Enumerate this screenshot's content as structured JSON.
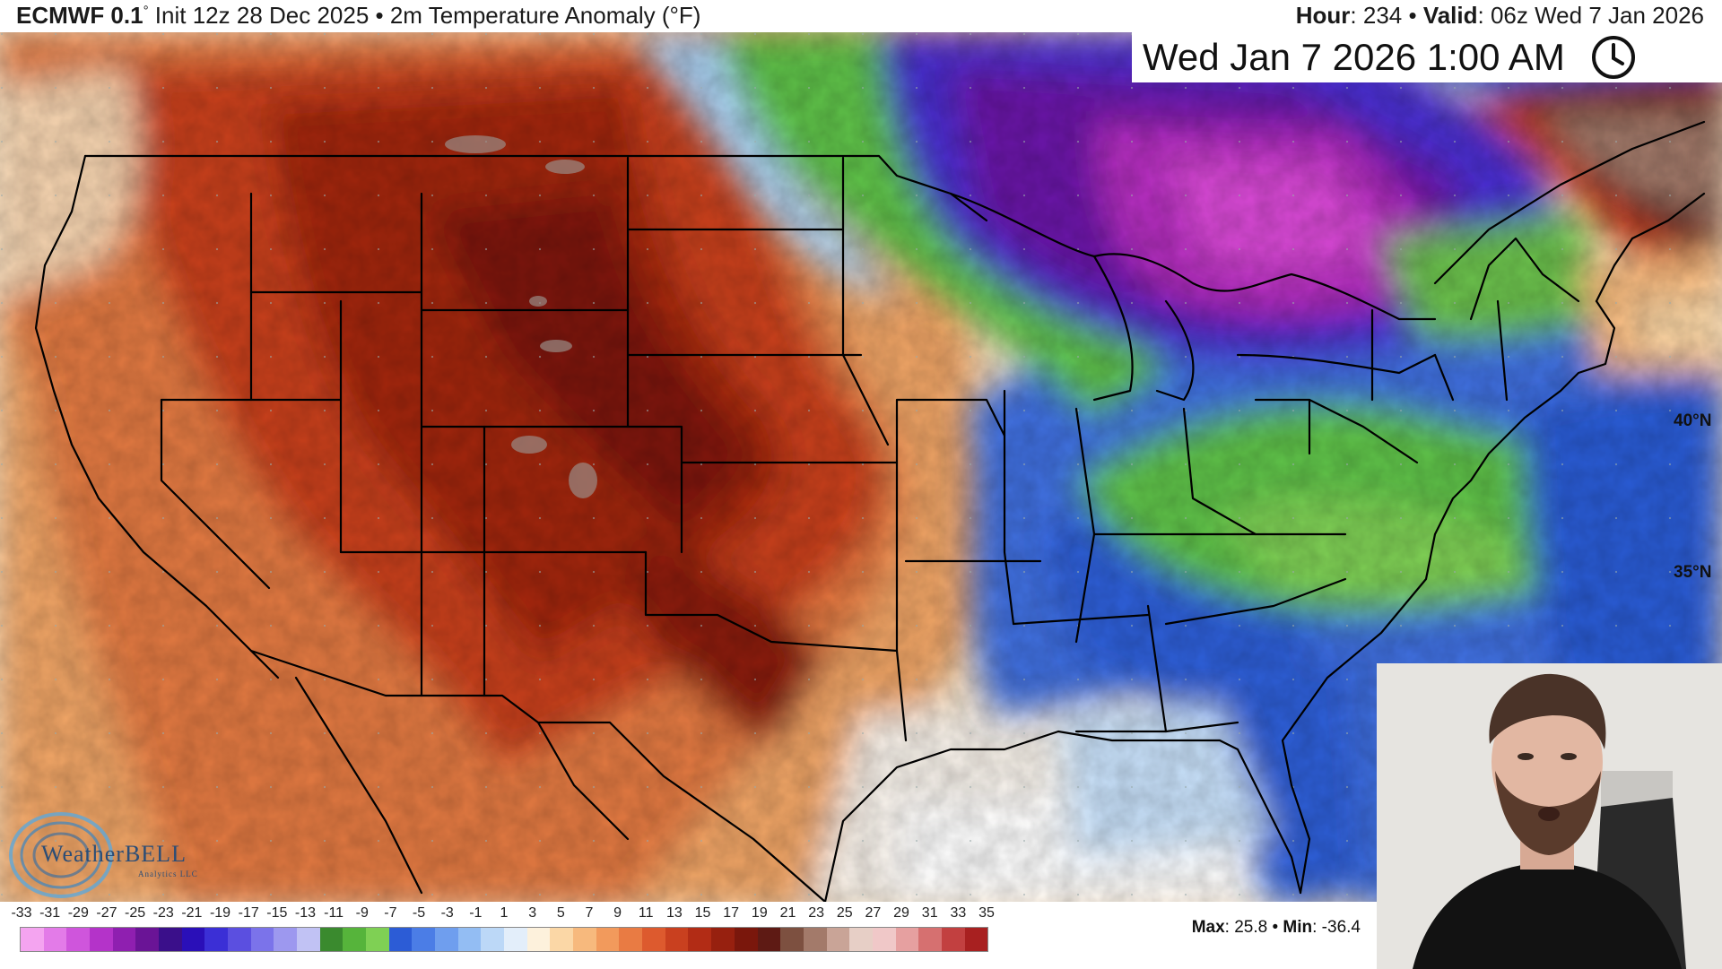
{
  "header": {
    "model_name": "ECMWF 0.1",
    "degree_symbol": "°",
    "title_rest": " Init 12z 28 Dec 2025 • 2m Temperature Anomaly (°F)",
    "hour_label": "Hour",
    "hour_value": ": 234 • ",
    "valid_label": "Valid",
    "valid_value": ": 06z Wed 7 Jan 2026"
  },
  "datetime_box": {
    "text": "Wed Jan 7 2026 1:00 AM",
    "icon": "clock-icon"
  },
  "lat_labels": [
    "40°N",
    "35°N"
  ],
  "logo": {
    "text": "WeatherBELL",
    "subtext": "Analytics LLC"
  },
  "colorbar": {
    "unit": "°F",
    "tick_labels": [
      "-33",
      "-31",
      "-29",
      "-27",
      "-25",
      "-23",
      "-21",
      "-19",
      "-17",
      "-15",
      "-13",
      "-11",
      "-9",
      "-7",
      "-5",
      "-3",
      "-1",
      "1",
      "3",
      "5",
      "7",
      "9",
      "11",
      "13",
      "15",
      "17",
      "19",
      "21",
      "23",
      "25",
      "27",
      "29",
      "31",
      "33",
      "35"
    ],
    "colors": [
      "#f4a4f0",
      "#e37be8",
      "#cf55dc",
      "#b433c9",
      "#8f1fb0",
      "#6a1496",
      "#3a0f8a",
      "#2a0fb8",
      "#3b2fd6",
      "#5b4fe0",
      "#7b73ea",
      "#9d98ef",
      "#c1c2f4",
      "#3a8a2e",
      "#56b43b",
      "#7fd054",
      "#2c5cd6",
      "#4b7de6",
      "#6f9eee",
      "#93bdf3",
      "#bcd8f7",
      "#e3eefa",
      "#fdf1dc",
      "#fbd7a6",
      "#f7b97d",
      "#f29a5c",
      "#e97b43",
      "#dd5a2e",
      "#c9401f",
      "#b22c15",
      "#97200f",
      "#7a170c",
      "#5e1a14",
      "#7d5040",
      "#a37a6a",
      "#c9a497",
      "#e7cfc6",
      "#f0c8c8",
      "#e6a0a0",
      "#d67070",
      "#c24040",
      "#a82020"
    ],
    "max_label": "Max",
    "max_value": ": 25.8 • ",
    "min_label": "Min",
    "min_value": ": -36.4"
  },
  "map": {
    "field": "2m Temperature Anomaly",
    "region": "Contiguous United States",
    "warm_color_dark": "#8a1a0a",
    "warm_color_mid": "#c9401f",
    "warm_color_light": "#f2a060",
    "cold_color_purple": "#6a14a8",
    "cold_color_magenta": "#c830c8",
    "cold_color_blue": "#2f5fd8",
    "cold_color_green": "#5ec24a",
    "neutral_color": "#f6f4ef"
  },
  "webcam": {
    "description": "presenter-webcam"
  }
}
